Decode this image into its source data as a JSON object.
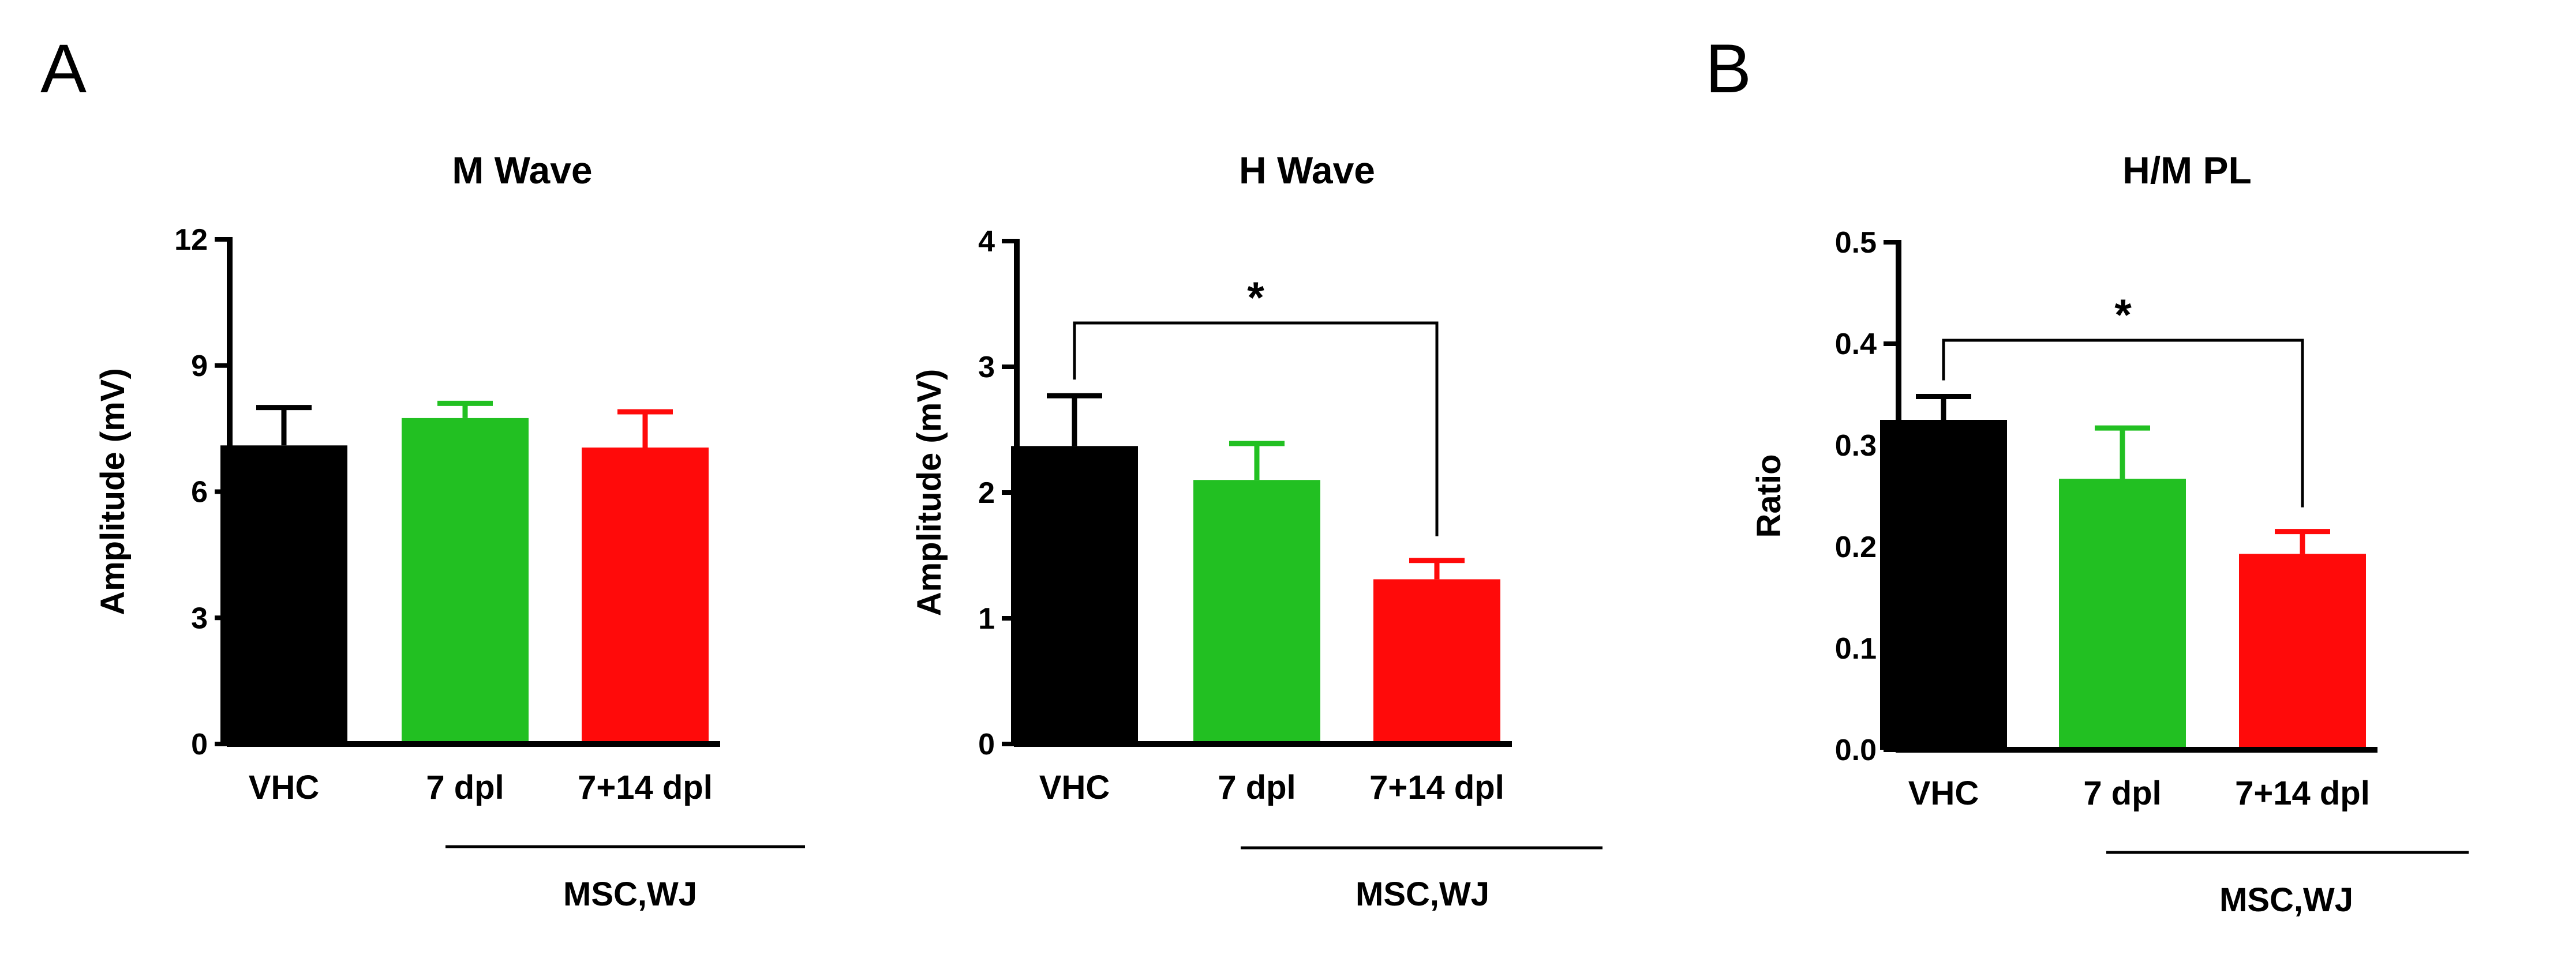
{
  "panels": {
    "a": "A",
    "b": "B"
  },
  "colors": {
    "VHC": "#000000",
    "7 dpl": "#22c022",
    "7+14 dpl": "#ff0a0a"
  },
  "chart_data": [
    {
      "type": "bar",
      "title": "M Wave",
      "ylabel": "Amplitude (mV)",
      "xlabel": "",
      "ylim": [
        0,
        12
      ],
      "yticks": [
        "0",
        "3",
        "6",
        "9",
        "12"
      ],
      "categories": [
        "VHC",
        "7 dpl",
        "7+14 dpl"
      ],
      "values": [
        7.1,
        7.75,
        7.05
      ],
      "errors": [
        0.9,
        0.35,
        0.85
      ],
      "group_label": "MSC,WJ",
      "significance": null
    },
    {
      "type": "bar",
      "title": "H Wave",
      "ylabel": "Amplitude (mV)",
      "xlabel": "",
      "ylim": [
        0,
        4
      ],
      "yticks": [
        "0",
        "1",
        "2",
        "3",
        "4"
      ],
      "categories": [
        "VHC",
        "7 dpl",
        "7+14 dpl"
      ],
      "values": [
        2.37,
        2.1,
        1.31
      ],
      "errors": [
        0.4,
        0.29,
        0.15
      ],
      "group_label": "MSC,WJ",
      "significance": {
        "from": "VHC",
        "to": "7+14 dpl",
        "label": "*"
      }
    },
    {
      "type": "bar",
      "title": "H/M PL",
      "ylabel": "Ratio",
      "xlabel": "",
      "ylim": [
        0,
        0.5
      ],
      "yticks": [
        "0.0",
        "0.1",
        "0.2",
        "0.3",
        "0.4",
        "0.5"
      ],
      "categories": [
        "VHC",
        "7 dpl",
        "7+14 dpl"
      ],
      "values": [
        0.325,
        0.267,
        0.193
      ],
      "errors": [
        0.023,
        0.05,
        0.022
      ],
      "group_label": "MSC,WJ",
      "significance": {
        "from": "VHC",
        "to": "7+14 dpl",
        "label": "*"
      }
    }
  ]
}
